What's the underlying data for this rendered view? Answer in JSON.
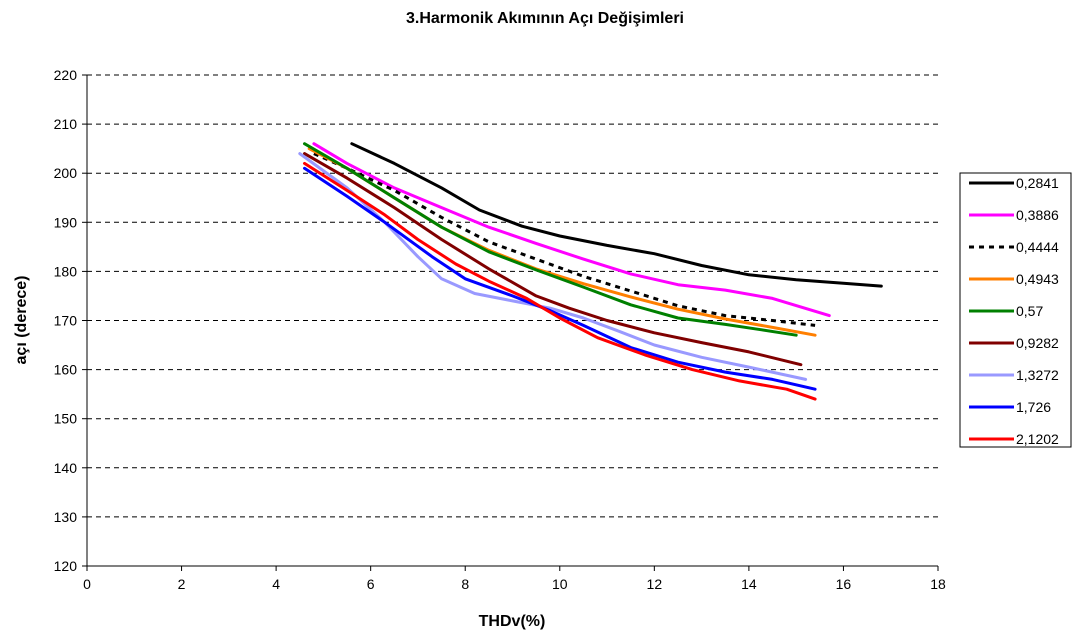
{
  "chart_data": {
    "type": "line",
    "title": "3.Harmonik Akımının Açı Değişimleri",
    "xlabel": "THDv(%)",
    "ylabel": "açı (derece)",
    "xlim": [
      0,
      18
    ],
    "ylim": [
      120,
      220
    ],
    "xticks": [
      0,
      2,
      4,
      6,
      8,
      10,
      12,
      14,
      16,
      18
    ],
    "yticks": [
      120,
      130,
      140,
      150,
      160,
      170,
      180,
      190,
      200,
      210,
      220
    ],
    "grid": "horizontal-dashed",
    "legend_position": "right",
    "series": [
      {
        "name": "0,2841",
        "color": "#000000",
        "dash": false,
        "points": [
          [
            5.6,
            206
          ],
          [
            6.5,
            202
          ],
          [
            7.5,
            197
          ],
          [
            8.3,
            192.5
          ],
          [
            9.2,
            189.2
          ],
          [
            10.0,
            187.2
          ],
          [
            11.0,
            185.3
          ],
          [
            12.0,
            183.6
          ],
          [
            13.0,
            181.2
          ],
          [
            14.0,
            179.3
          ],
          [
            15.0,
            178.3
          ],
          [
            16.0,
            177.6
          ],
          [
            16.8,
            177
          ]
        ]
      },
      {
        "name": "0,3886",
        "color": "#ff00ff",
        "dash": false,
        "points": [
          [
            4.8,
            206
          ],
          [
            5.5,
            202
          ],
          [
            6.5,
            197
          ],
          [
            7.5,
            193
          ],
          [
            8.5,
            189
          ],
          [
            9.5,
            185.7
          ],
          [
            10.5,
            182.5
          ],
          [
            11.5,
            179.5
          ],
          [
            12.5,
            177.3
          ],
          [
            13.5,
            176.2
          ],
          [
            14.5,
            174.5
          ],
          [
            15.7,
            171
          ]
        ]
      },
      {
        "name": "0,4444",
        "color": "#000000",
        "dash": true,
        "points": [
          [
            4.8,
            204
          ],
          [
            5.5,
            201
          ],
          [
            6.5,
            196.5
          ],
          [
            7.5,
            191
          ],
          [
            8.5,
            186
          ],
          [
            9.5,
            182.5
          ],
          [
            10.5,
            179
          ],
          [
            11.5,
            176
          ],
          [
            12.5,
            173
          ],
          [
            13.5,
            171
          ],
          [
            14.5,
            170
          ],
          [
            15.4,
            169
          ]
        ]
      },
      {
        "name": "0,4943",
        "color": "#ff7f00",
        "dash": false,
        "points": [
          [
            4.7,
            205
          ],
          [
            5.5,
            201
          ],
          [
            6.5,
            195
          ],
          [
            7.5,
            189
          ],
          [
            8.5,
            184.3
          ],
          [
            9.5,
            180.5
          ],
          [
            10.5,
            177.5
          ],
          [
            11.5,
            174.8
          ],
          [
            12.5,
            172.3
          ],
          [
            13.5,
            170.3
          ],
          [
            14.5,
            168.6
          ],
          [
            15.4,
            167
          ]
        ]
      },
      {
        "name": "0,57",
        "color": "#008000",
        "dash": false,
        "points": [
          [
            4.6,
            206
          ],
          [
            5.5,
            201
          ],
          [
            6.5,
            195
          ],
          [
            7.5,
            189
          ],
          [
            8.5,
            184
          ],
          [
            9.5,
            180.3
          ],
          [
            10.5,
            176.8
          ],
          [
            11.5,
            173.2
          ],
          [
            12.5,
            170.5
          ],
          [
            13.5,
            169.2
          ],
          [
            14.2,
            168.2
          ],
          [
            15.0,
            167
          ]
        ]
      },
      {
        "name": "0,9282",
        "color": "#800000",
        "dash": false,
        "points": [
          [
            4.6,
            204
          ],
          [
            5.5,
            199
          ],
          [
            6.5,
            193
          ],
          [
            7.5,
            186.5
          ],
          [
            8.5,
            180.5
          ],
          [
            9.5,
            175
          ],
          [
            10.2,
            172.5
          ],
          [
            11.0,
            170
          ],
          [
            12.0,
            167.5
          ],
          [
            13.0,
            165.5
          ],
          [
            14.0,
            163.6
          ],
          [
            15.1,
            161
          ]
        ]
      },
      {
        "name": "1,3272",
        "color": "#9999ff",
        "dash": false,
        "points": [
          [
            4.5,
            204
          ],
          [
            5.5,
            197
          ],
          [
            6.3,
            190
          ],
          [
            7.0,
            183
          ],
          [
            7.5,
            178.5
          ],
          [
            8.2,
            175.5
          ],
          [
            9.0,
            174
          ],
          [
            9.8,
            172.5
          ],
          [
            10.5,
            170.5
          ],
          [
            11.2,
            168
          ],
          [
            12.0,
            165
          ],
          [
            13.0,
            162.5
          ],
          [
            14.0,
            160.5
          ],
          [
            15.2,
            158
          ]
        ]
      },
      {
        "name": "1,726",
        "color": "#0000ff",
        "dash": false,
        "points": [
          [
            4.6,
            201
          ],
          [
            5.5,
            195.3
          ],
          [
            6.3,
            190
          ],
          [
            7.3,
            183
          ],
          [
            8.0,
            178.5
          ],
          [
            9.0,
            175
          ],
          [
            9.8,
            172
          ],
          [
            10.5,
            169
          ],
          [
            11.5,
            164.5
          ],
          [
            12.5,
            161.5
          ],
          [
            13.5,
            159.5
          ],
          [
            14.5,
            158
          ],
          [
            15.4,
            156
          ]
        ]
      },
      {
        "name": "2,1202",
        "color": "#ff0000",
        "dash": false,
        "points": [
          [
            4.6,
            202
          ],
          [
            5.5,
            196.5
          ],
          [
            6.3,
            191.5
          ],
          [
            7.0,
            186.5
          ],
          [
            7.8,
            181.5
          ],
          [
            8.5,
            178
          ],
          [
            9.3,
            174.5
          ],
          [
            10.0,
            170.5
          ],
          [
            10.8,
            166.5
          ],
          [
            11.8,
            163
          ],
          [
            12.8,
            160
          ],
          [
            13.8,
            157.7
          ],
          [
            14.8,
            156
          ],
          [
            15.4,
            154
          ]
        ]
      }
    ]
  }
}
